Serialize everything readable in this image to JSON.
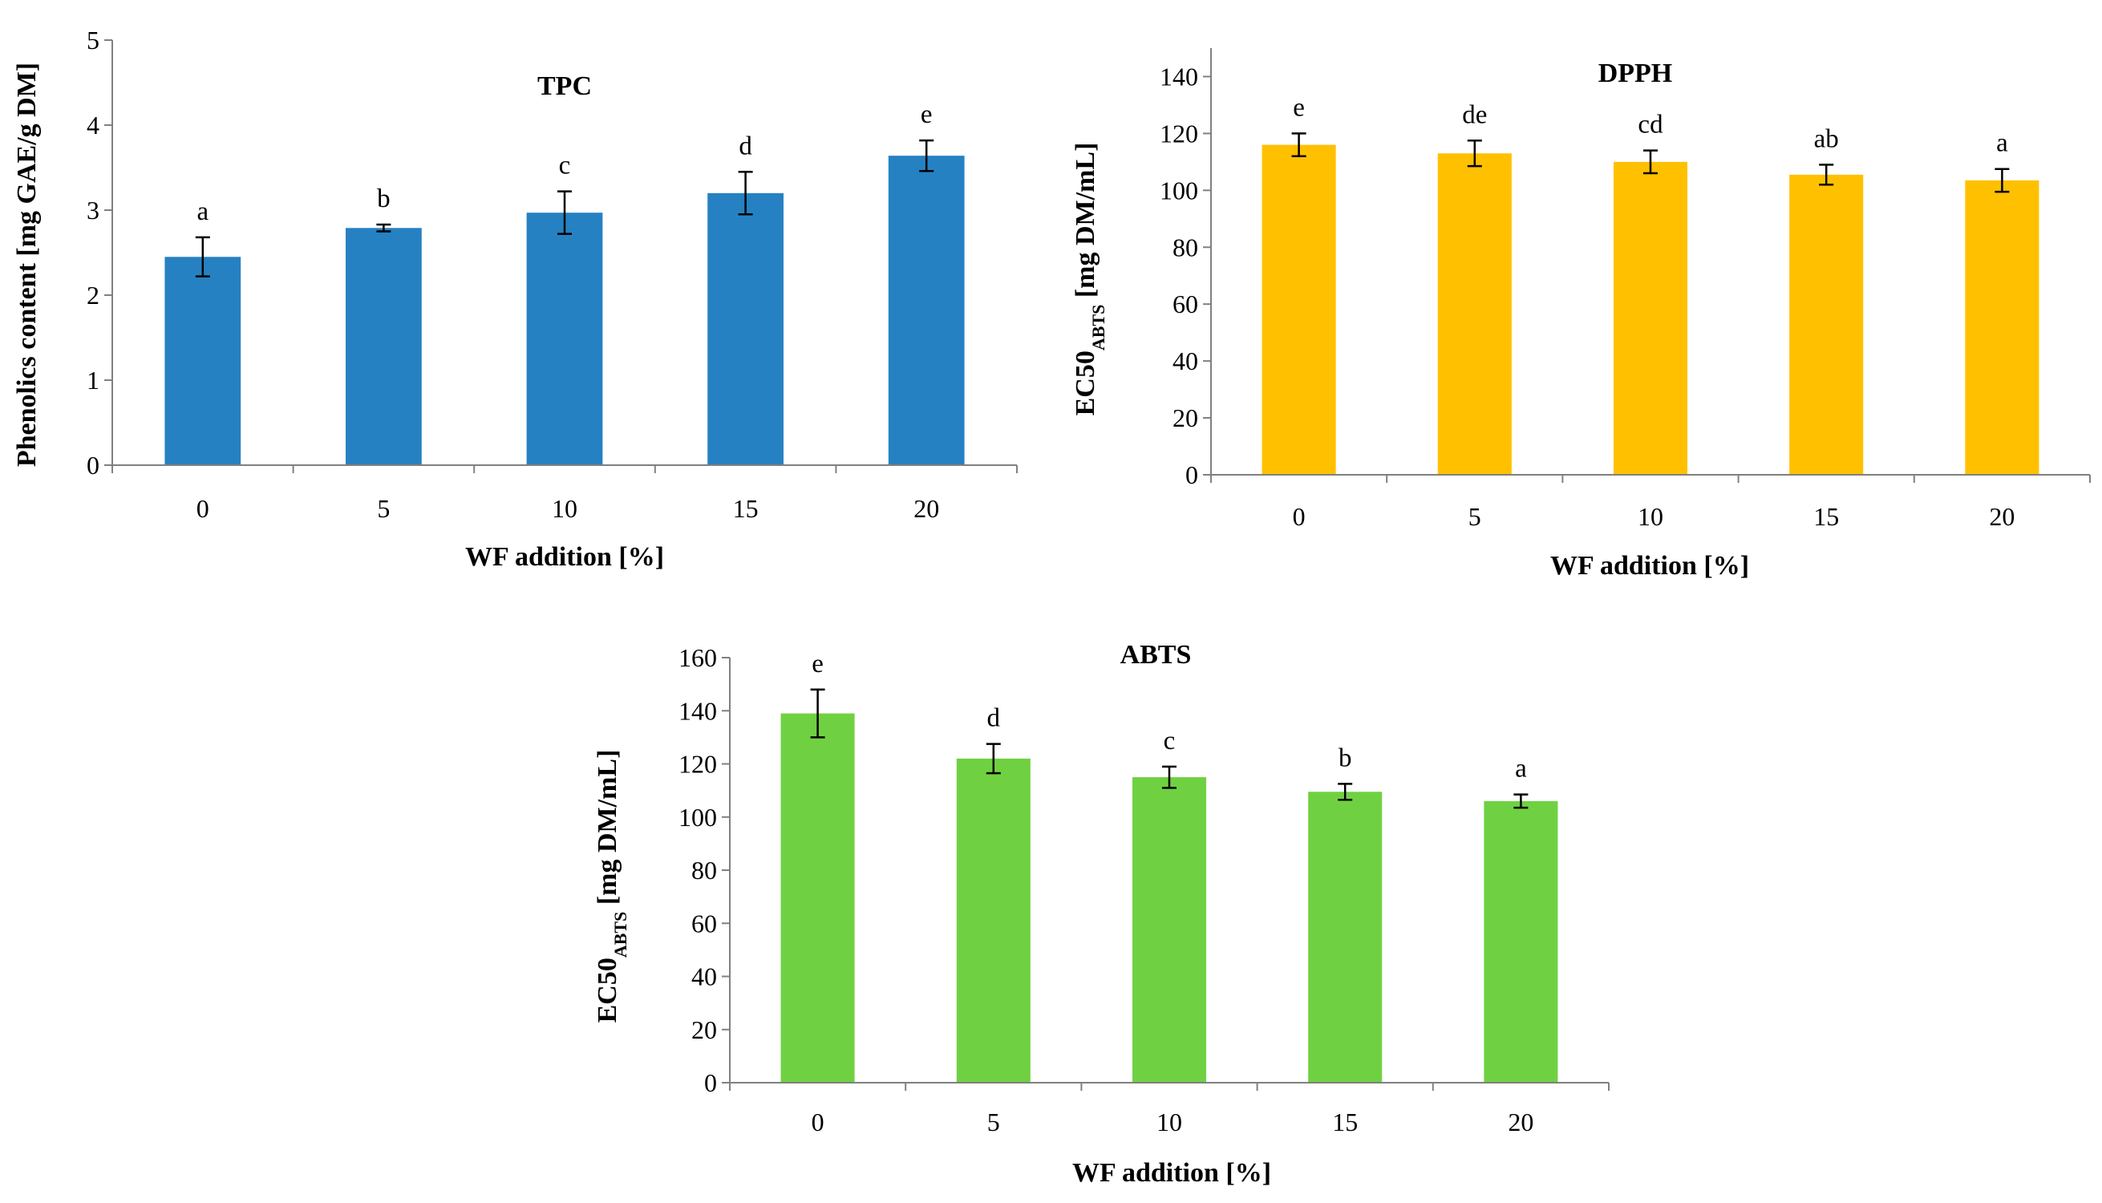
{
  "chart_data": [
    {
      "id": "tpc",
      "type": "bar",
      "title": "TPC",
      "xlabel": "WF addition [%]",
      "ylabel": "Phenolics content [mg GAE/g DM]",
      "ylabel_main": "Phenolics content [mg GAE/g DM]",
      "ylabel_sub": "",
      "ylabel_rest": "",
      "categories": [
        "0",
        "5",
        "10",
        "15",
        "20"
      ],
      "values": [
        2.45,
        2.79,
        2.97,
        3.2,
        3.64
      ],
      "errors": [
        0.23,
        0.04,
        0.25,
        0.25,
        0.18
      ],
      "letters": [
        "a",
        "b",
        "c",
        "d",
        "e"
      ],
      "ylim": [
        0,
        5
      ],
      "yticks": [
        "0",
        "1",
        "2",
        "3",
        "4",
        "5"
      ],
      "grid": false,
      "color": "#2681C2"
    },
    {
      "id": "dpph",
      "type": "bar",
      "title": "DPPH",
      "xlabel": "WF addition [%]",
      "ylabel": "EC50ABTS [mg DM/mL]",
      "ylabel_main": "EC50",
      "ylabel_sub": "ABTS",
      "ylabel_rest": " [mg DM/mL]",
      "categories": [
        "0",
        "5",
        "10",
        "15",
        "20"
      ],
      "values": [
        116,
        113,
        110,
        105.5,
        103.5
      ],
      "errors": [
        4,
        4.5,
        4,
        3.5,
        4
      ],
      "letters": [
        "e",
        "de",
        "cd",
        "ab",
        "a"
      ],
      "ylim": [
        0,
        150
      ],
      "yticks": [
        "0",
        "20",
        "40",
        "60",
        "80",
        "100",
        "120",
        "140"
      ],
      "grid": false,
      "color": "#FFC000"
    },
    {
      "id": "abts",
      "type": "bar",
      "title": "ABTS",
      "xlabel": "WF addition [%]",
      "ylabel": "EC50ABTS [mg DM/mL]",
      "ylabel_main": "EC50",
      "ylabel_sub": "ABTS",
      "ylabel_rest": " [mg DM/mL]",
      "categories": [
        "0",
        "5",
        "10",
        "15",
        "20"
      ],
      "values": [
        139,
        122,
        115,
        109.5,
        106
      ],
      "errors": [
        9,
        5.5,
        4,
        3,
        2.5
      ],
      "letters": [
        "e",
        "d",
        "c",
        "b",
        "a"
      ],
      "ylim": [
        0,
        160
      ],
      "yticks": [
        "0",
        "20",
        "40",
        "60",
        "80",
        "100",
        "120",
        "140",
        "160"
      ],
      "grid": false,
      "color": "#6FD142"
    }
  ]
}
